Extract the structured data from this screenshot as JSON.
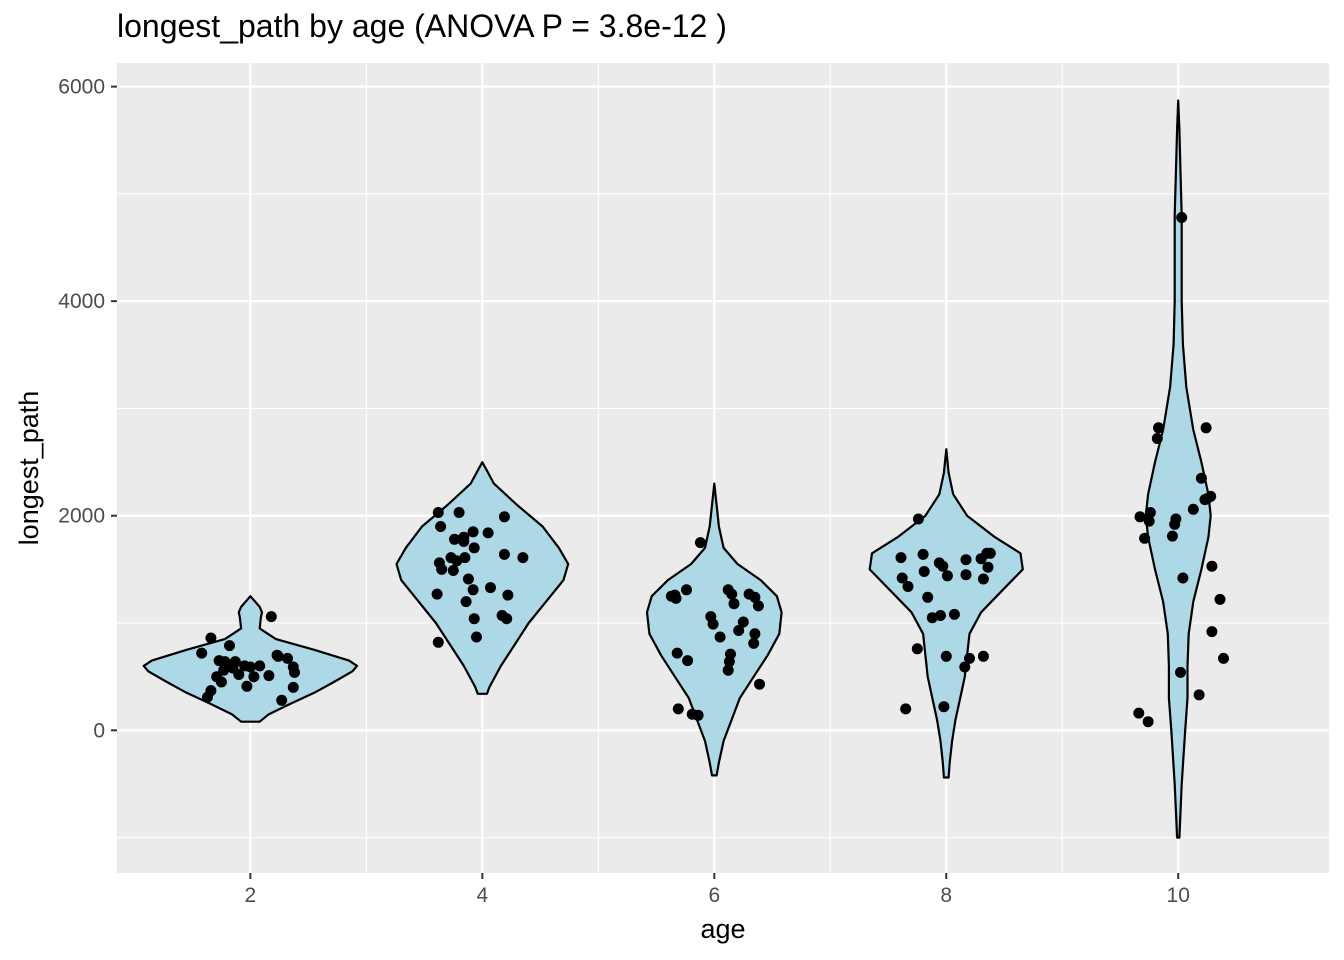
{
  "chart_data": {
    "type": "violin",
    "title": "longest_path by age (ANOVA P = 3.8e-12 )",
    "xlabel": "age",
    "ylabel": "longest_path",
    "xlim": [
      0.85,
      11.3
    ],
    "ylim": [
      -1330,
      6220
    ],
    "x_ticks": [
      2,
      4,
      6,
      8,
      10
    ],
    "x_tick_labels": [
      "2",
      "4",
      "6",
      "8",
      "10"
    ],
    "y_ticks": [
      0,
      2000,
      4000,
      6000
    ],
    "y_tick_labels": [
      "0",
      "2000",
      "4000",
      "6000"
    ],
    "grid": true,
    "legend": "none",
    "colors": {
      "panel": "#ebebeb",
      "grid": "#ffffff",
      "violin_fill": "#add8e6",
      "violin_line": "#000000",
      "points": "#000000",
      "axis_text": "#4d4d4d"
    },
    "groups": [
      {
        "age": 2,
        "range": [
          80,
          1250
        ],
        "density": [
          [
            80,
            0.08
          ],
          [
            150,
            0.16
          ],
          [
            250,
            0.35
          ],
          [
            350,
            0.55
          ],
          [
            450,
            0.72
          ],
          [
            550,
            0.88
          ],
          [
            600,
            0.92
          ],
          [
            650,
            0.85
          ],
          [
            750,
            0.55
          ],
          [
            850,
            0.22
          ],
          [
            950,
            0.08
          ],
          [
            1050,
            0.09
          ],
          [
            1100,
            0.1
          ],
          [
            1150,
            0.08
          ],
          [
            1250,
            0.0
          ]
        ],
        "points": [
          [
            1.66,
            860
          ],
          [
            1.82,
            790
          ],
          [
            1.78,
            640
          ],
          [
            1.71,
            500
          ],
          [
            1.63,
            310
          ],
          [
            1.66,
            370
          ],
          [
            1.58,
            720
          ],
          [
            1.77,
            560
          ],
          [
            1.87,
            640
          ],
          [
            1.95,
            600
          ],
          [
            1.9,
            520
          ],
          [
            2.03,
            500
          ],
          [
            2.0,
            590
          ],
          [
            2.08,
            600
          ],
          [
            1.97,
            410
          ],
          [
            2.16,
            510
          ],
          [
            2.23,
            700
          ],
          [
            2.32,
            670
          ],
          [
            2.37,
            590
          ],
          [
            2.38,
            540
          ],
          [
            2.37,
            400
          ],
          [
            2.27,
            280
          ],
          [
            2.18,
            1060
          ],
          [
            1.75,
            450
          ],
          [
            1.8,
            600
          ],
          [
            1.85,
            580
          ],
          [
            1.73,
            650
          ],
          [
            2.24,
            690
          ]
        ]
      },
      {
        "age": 4,
        "range": [
          340,
          2500
        ],
        "density": [
          [
            340,
            0.04
          ],
          [
            400,
            0.06
          ],
          [
            600,
            0.16
          ],
          [
            800,
            0.28
          ],
          [
            1000,
            0.4
          ],
          [
            1200,
            0.55
          ],
          [
            1400,
            0.7
          ],
          [
            1550,
            0.74
          ],
          [
            1700,
            0.66
          ],
          [
            1900,
            0.52
          ],
          [
            2100,
            0.3
          ],
          [
            2300,
            0.1
          ],
          [
            2400,
            0.05
          ],
          [
            2500,
            0.0
          ]
        ],
        "points": [
          [
            3.62,
            2030
          ],
          [
            3.64,
            1900
          ],
          [
            3.63,
            1560
          ],
          [
            3.65,
            1500
          ],
          [
            3.61,
            1270
          ],
          [
            3.62,
            820
          ],
          [
            3.75,
            1490
          ],
          [
            3.78,
            1580
          ],
          [
            3.73,
            1610
          ],
          [
            3.84,
            1800
          ],
          [
            3.84,
            1760
          ],
          [
            3.85,
            1610
          ],
          [
            3.88,
            1410
          ],
          [
            3.92,
            1850
          ],
          [
            3.93,
            1700
          ],
          [
            3.92,
            1310
          ],
          [
            3.86,
            1200
          ],
          [
            3.93,
            1040
          ],
          [
            3.95,
            870
          ],
          [
            4.05,
            1840
          ],
          [
            4.07,
            1330
          ],
          [
            4.19,
            1990
          ],
          [
            4.19,
            1640
          ],
          [
            4.22,
            1260
          ],
          [
            4.17,
            1070
          ],
          [
            4.21,
            1040
          ],
          [
            4.35,
            1610
          ],
          [
            3.76,
            1780
          ],
          [
            3.8,
            2030
          ]
        ]
      },
      {
        "age": 6,
        "range": [
          -420,
          2300
        ],
        "density": [
          [
            -420,
            0.02
          ],
          [
            -300,
            0.04
          ],
          [
            -100,
            0.08
          ],
          [
            100,
            0.15
          ],
          [
            300,
            0.22
          ],
          [
            500,
            0.34
          ],
          [
            700,
            0.46
          ],
          [
            900,
            0.56
          ],
          [
            1100,
            0.58
          ],
          [
            1250,
            0.54
          ],
          [
            1400,
            0.4
          ],
          [
            1550,
            0.2
          ],
          [
            1700,
            0.08
          ],
          [
            1900,
            0.04
          ],
          [
            2100,
            0.02
          ],
          [
            2300,
            0.0
          ]
        ],
        "points": [
          [
            5.66,
            1260
          ],
          [
            5.67,
            1230
          ],
          [
            5.76,
            1310
          ],
          [
            5.68,
            720
          ],
          [
            5.77,
            650
          ],
          [
            5.69,
            200
          ],
          [
            5.81,
            150
          ],
          [
            5.86,
            140
          ],
          [
            5.88,
            1750
          ],
          [
            5.97,
            1060
          ],
          [
            5.99,
            990
          ],
          [
            6.05,
            870
          ],
          [
            6.12,
            1310
          ],
          [
            6.15,
            1270
          ],
          [
            6.17,
            1180
          ],
          [
            6.21,
            930
          ],
          [
            6.25,
            1010
          ],
          [
            6.14,
            710
          ],
          [
            6.13,
            640
          ],
          [
            6.12,
            560
          ],
          [
            6.3,
            1270
          ],
          [
            6.35,
            1240
          ],
          [
            6.38,
            1160
          ],
          [
            6.35,
            900
          ],
          [
            6.34,
            810
          ],
          [
            6.39,
            430
          ],
          [
            5.63,
            1250
          ]
        ]
      },
      {
        "age": 8,
        "range": [
          -440,
          2620
        ],
        "density": [
          [
            -440,
            0.02
          ],
          [
            -300,
            0.03
          ],
          [
            -100,
            0.05
          ],
          [
            100,
            0.08
          ],
          [
            300,
            0.12
          ],
          [
            500,
            0.16
          ],
          [
            700,
            0.18
          ],
          [
            900,
            0.2
          ],
          [
            1100,
            0.3
          ],
          [
            1300,
            0.48
          ],
          [
            1500,
            0.66
          ],
          [
            1650,
            0.64
          ],
          [
            1800,
            0.42
          ],
          [
            2000,
            0.18
          ],
          [
            2200,
            0.06
          ],
          [
            2400,
            0.02
          ],
          [
            2620,
            0.0
          ]
        ],
        "points": [
          [
            7.61,
            1610
          ],
          [
            7.62,
            1420
          ],
          [
            7.67,
            1340
          ],
          [
            7.65,
            200
          ],
          [
            7.75,
            760
          ],
          [
            7.8,
            1640
          ],
          [
            7.81,
            1480
          ],
          [
            7.76,
            1970
          ],
          [
            7.84,
            1240
          ],
          [
            7.88,
            1050
          ],
          [
            7.94,
            1560
          ],
          [
            7.95,
            1070
          ],
          [
            7.97,
            1530
          ],
          [
            8.01,
            1440
          ],
          [
            8.0,
            690
          ],
          [
            7.98,
            220
          ],
          [
            8.07,
            1080
          ],
          [
            8.17,
            1590
          ],
          [
            8.17,
            1450
          ],
          [
            8.16,
            590
          ],
          [
            8.2,
            670
          ],
          [
            8.3,
            1600
          ],
          [
            8.32,
            1410
          ],
          [
            8.35,
            1650
          ],
          [
            8.38,
            1650
          ],
          [
            8.36,
            1520
          ],
          [
            8.32,
            690
          ]
        ]
      },
      {
        "age": 10,
        "range": [
          -1000,
          5870
        ],
        "density": [
          [
            -1000,
            0.01
          ],
          [
            -500,
            0.03
          ],
          [
            0,
            0.06
          ],
          [
            300,
            0.08
          ],
          [
            600,
            0.08
          ],
          [
            900,
            0.09
          ],
          [
            1200,
            0.13
          ],
          [
            1500,
            0.2
          ],
          [
            1800,
            0.26
          ],
          [
            2000,
            0.28
          ],
          [
            2200,
            0.26
          ],
          [
            2500,
            0.2
          ],
          [
            2800,
            0.13
          ],
          [
            3200,
            0.07
          ],
          [
            3600,
            0.04
          ],
          [
            4000,
            0.03
          ],
          [
            4500,
            0.03
          ],
          [
            4800,
            0.03
          ],
          [
            5200,
            0.02
          ],
          [
            5600,
            0.01
          ],
          [
            5870,
            0.0
          ]
        ],
        "points": [
          [
            9.66,
            160
          ],
          [
            9.67,
            1990
          ],
          [
            9.71,
            1790
          ],
          [
            9.75,
            1950
          ],
          [
            9.76,
            2030
          ],
          [
            9.82,
            2720
          ],
          [
            9.83,
            2820
          ],
          [
            9.74,
            80
          ],
          [
            9.95,
            1810
          ],
          [
            9.97,
            1920
          ],
          [
            9.98,
            1970
          ],
          [
            10.02,
            540
          ],
          [
            10.04,
            1420
          ],
          [
            10.03,
            4780
          ],
          [
            10.13,
            2060
          ],
          [
            10.18,
            330
          ],
          [
            10.2,
            2350
          ],
          [
            10.23,
            2150
          ],
          [
            10.28,
            2180
          ],
          [
            10.24,
            2820
          ],
          [
            10.29,
            1530
          ],
          [
            10.29,
            920
          ],
          [
            10.36,
            1220
          ],
          [
            10.39,
            670
          ],
          [
            10.25,
            2160
          ]
        ]
      }
    ]
  }
}
